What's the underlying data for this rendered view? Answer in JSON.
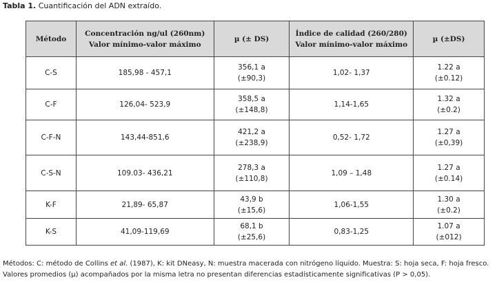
{
  "caption": {
    "label": "Tabla 1.",
    "text": "Cuantificación del ADN extraído."
  },
  "table": {
    "header": [
      [
        "Método"
      ],
      [
        "Concentración ng/ul (260nm)",
        "Valor mínimo-valor máximo"
      ],
      [
        "µ (± DS)"
      ],
      [
        "Índice de calidad (260/280)",
        "Valor mínimo-valor máximo"
      ],
      [
        "µ (±DS)"
      ]
    ],
    "rows": [
      [
        [
          "C-S"
        ],
        [
          "185,98 - 457,1"
        ],
        [
          "356,1 a",
          "(±90,3)"
        ],
        [
          "1,02- 1,37"
        ],
        [
          "1.22 a",
          "(±0.12)"
        ]
      ],
      [
        [
          "C-F"
        ],
        [
          "126,04- 523,9"
        ],
        [
          "358,5 a",
          "(±148,8)"
        ],
        [
          "1,14-1,65"
        ],
        [
          "1.32 a",
          "(±0.2)"
        ]
      ],
      [
        [
          "C-F-N"
        ],
        [
          "143,44-851,6"
        ],
        [
          "421,2 a",
          "(±238,9)"
        ],
        [
          "0,52- 1,72"
        ],
        [
          "1.27 a",
          "(±0,39)"
        ]
      ],
      [
        [
          "C-S-N"
        ],
        [
          "109.03- 436,21"
        ],
        [
          "278,3 a",
          "(±110,8)"
        ],
        [
          "1,09 – 1,48"
        ],
        [
          "1.27 a",
          "(±0.14)"
        ]
      ],
      [
        [
          "K-F"
        ],
        [
          "21,89- 65,87"
        ],
        [
          "43,9 b",
          "(±15,6)"
        ],
        [
          "1,06-1,55"
        ],
        [
          "1.30 a",
          "(±0.2)"
        ]
      ],
      [
        [
          "K-S"
        ],
        [
          "41,09-119,69"
        ],
        [
          "68,1 b",
          "(±25,6)"
        ],
        [
          "0,83-1,25"
        ],
        [
          "1.07 a",
          "(±012)"
        ]
      ]
    ]
  },
  "footnote": {
    "before": "Métodos: C: método de Collins ",
    "italic": "et al.",
    "after": " (1987), K: kit DNeasy, N: muestra macerada con nitrógeno líquido. Muestra: S: hoja seca, F: hoja fresco. Valores promedios (µ) acompañados por la misma letra no presentan diferencias estadísticamente significativas (P > 0,05)."
  }
}
